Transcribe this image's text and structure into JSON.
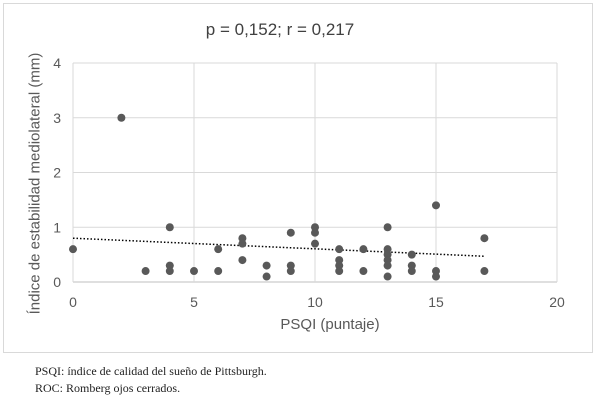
{
  "chart_data": {
    "type": "scatter",
    "title": "p = 0,152; r = 0,217",
    "xlabel": "PSQI (puntaje)",
    "ylabel": "Índice de estabilidad mediolateral (mm)",
    "xlim": [
      0,
      20
    ],
    "ylim": [
      0,
      4
    ],
    "x_ticks": [
      "0",
      "5",
      "10",
      "15",
      "20"
    ],
    "y_ticks": [
      "0",
      "1",
      "2",
      "3",
      "4"
    ],
    "grid": true,
    "marker_color": "#595959",
    "trendline": {
      "style": "dotted",
      "color": "#000000",
      "x": [
        0,
        17
      ],
      "y": [
        0.8,
        0.47
      ]
    },
    "points": [
      {
        "x": 0,
        "y": 0.6
      },
      {
        "x": 2,
        "y": 3.0
      },
      {
        "x": 3,
        "y": 0.2
      },
      {
        "x": 4,
        "y": 1.0
      },
      {
        "x": 4,
        "y": 0.3
      },
      {
        "x": 4,
        "y": 0.2
      },
      {
        "x": 5,
        "y": 0.2
      },
      {
        "x": 6,
        "y": 0.6
      },
      {
        "x": 6,
        "y": 0.2
      },
      {
        "x": 7,
        "y": 0.8
      },
      {
        "x": 7,
        "y": 0.7
      },
      {
        "x": 7,
        "y": 0.4
      },
      {
        "x": 8,
        "y": 0.3
      },
      {
        "x": 8,
        "y": 0.1
      },
      {
        "x": 9,
        "y": 0.9
      },
      {
        "x": 9,
        "y": 0.3
      },
      {
        "x": 9,
        "y": 0.2
      },
      {
        "x": 10,
        "y": 1.0
      },
      {
        "x": 10,
        "y": 0.9
      },
      {
        "x": 10,
        "y": 0.7
      },
      {
        "x": 11,
        "y": 0.6
      },
      {
        "x": 11,
        "y": 0.4
      },
      {
        "x": 11,
        "y": 0.3
      },
      {
        "x": 11,
        "y": 0.2
      },
      {
        "x": 12,
        "y": 0.6
      },
      {
        "x": 12,
        "y": 0.2
      },
      {
        "x": 13,
        "y": 1.0
      },
      {
        "x": 13,
        "y": 0.6
      },
      {
        "x": 13,
        "y": 0.5
      },
      {
        "x": 13,
        "y": 0.4
      },
      {
        "x": 13,
        "y": 0.3
      },
      {
        "x": 13,
        "y": 0.1
      },
      {
        "x": 14,
        "y": 0.5
      },
      {
        "x": 14,
        "y": 0.3
      },
      {
        "x": 14,
        "y": 0.2
      },
      {
        "x": 15,
        "y": 1.4
      },
      {
        "x": 15,
        "y": 0.2
      },
      {
        "x": 15,
        "y": 0.1
      },
      {
        "x": 17,
        "y": 0.8
      },
      {
        "x": 17,
        "y": 0.2
      }
    ]
  },
  "footnotes": [
    "PSQI: índice de calidad del sueño de Pittsburgh.",
    "ROC: Romberg ojos cerrados."
  ]
}
